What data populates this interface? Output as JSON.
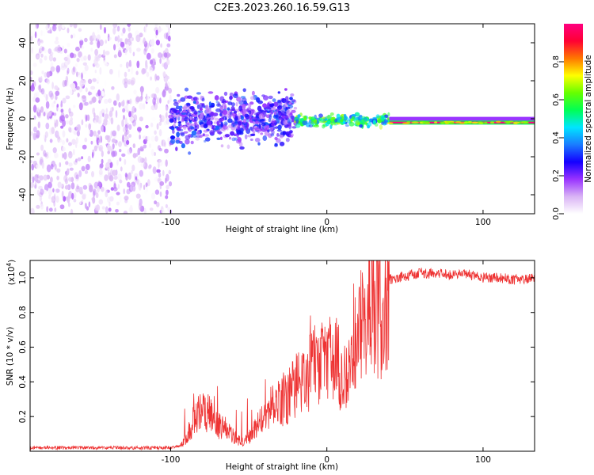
{
  "title": "C2E3.2023.260.16.59.G13",
  "colors": {
    "snr_line": "#ee3333",
    "colormap": [
      "#ffffff",
      "#d9b3f5",
      "#9933ff",
      "#1400ff",
      "#1a7cff",
      "#00e5ff",
      "#00ff55",
      "#66ff00",
      "#ffff00",
      "#ff7700",
      "#ff0033",
      "#ff0080"
    ]
  },
  "chart_data": [
    {
      "type": "heatmap",
      "xlabel": "Height of straight line (km)",
      "ylabel": "Frequency (Hz)",
      "xlim": [
        -190,
        133
      ],
      "ylim": [
        -50,
        50
      ],
      "xticks": [
        -100,
        0,
        100
      ],
      "yticks": [
        -40,
        -20,
        0,
        20,
        40
      ],
      "colorbar": {
        "label": "Normalized spectral amplitude",
        "range": [
          0,
          1
        ],
        "ticks": [
          "0.0",
          "0.2",
          "0.4",
          "0.6",
          "0.8"
        ],
        "tick_values": [
          0.0,
          0.2,
          0.4,
          0.6,
          0.8
        ]
      },
      "regions": [
        {
          "x": [
            -190,
            -100
          ],
          "freq_spread": [
            -50,
            50
          ],
          "amplitude": [
            0.0,
            0.15
          ]
        },
        {
          "x": [
            -100,
            -20
          ],
          "freq_center": 0,
          "freq_spread": [
            -15,
            15
          ],
          "amplitude": [
            0.1,
            0.35
          ]
        },
        {
          "x": [
            -20,
            40
          ],
          "freq_center": -1,
          "freq_spread": [
            -4,
            3
          ],
          "amplitude": [
            0.3,
            0.7
          ]
        },
        {
          "x": [
            40,
            133
          ],
          "freq_center": -2,
          "freq_spread": [
            -3,
            1
          ],
          "amplitude": [
            0.8,
            1.0
          ]
        }
      ]
    },
    {
      "type": "line",
      "xlabel": "Height of straight line (km)",
      "ylabel": "SNR (10 * v/v)",
      "yscale_label": "(x10",
      "yscale_exp": "4",
      "xlim": [
        -190,
        133
      ],
      "ylim": [
        0,
        1.1
      ],
      "xticks": [
        -100,
        0,
        100
      ],
      "yticks": [
        "0.2",
        "0.4",
        "0.6",
        "0.8",
        "1.0"
      ],
      "ytick_values": [
        0.2,
        0.4,
        0.6,
        0.8,
        1.0
      ],
      "series": [
        {
          "x": [
            -190,
            -150,
            -100,
            -95,
            -90,
            -85,
            -80,
            -75,
            -70,
            -65,
            -60,
            -55,
            -50,
            -45,
            -40,
            -35,
            -30,
            -25,
            -20,
            -15,
            -10,
            -5,
            0,
            5,
            10,
            15,
            20,
            25,
            30,
            35,
            40,
            45,
            50,
            55,
            60,
            70,
            80,
            90,
            100,
            110,
            120,
            133
          ],
          "y": [
            0.02,
            0.02,
            0.02,
            0.03,
            0.08,
            0.22,
            0.27,
            0.24,
            0.17,
            0.16,
            0.1,
            0.06,
            0.09,
            0.17,
            0.24,
            0.3,
            0.33,
            0.37,
            0.43,
            0.46,
            0.53,
            0.59,
            0.56,
            0.64,
            0.4,
            0.67,
            0.83,
            0.92,
            0.97,
            0.98,
            0.99,
            1.0,
            1.01,
            1.02,
            1.03,
            1.02,
            1.02,
            1.02,
            1.0,
            1.0,
            0.99,
            1.0
          ]
        }
      ]
    }
  ]
}
